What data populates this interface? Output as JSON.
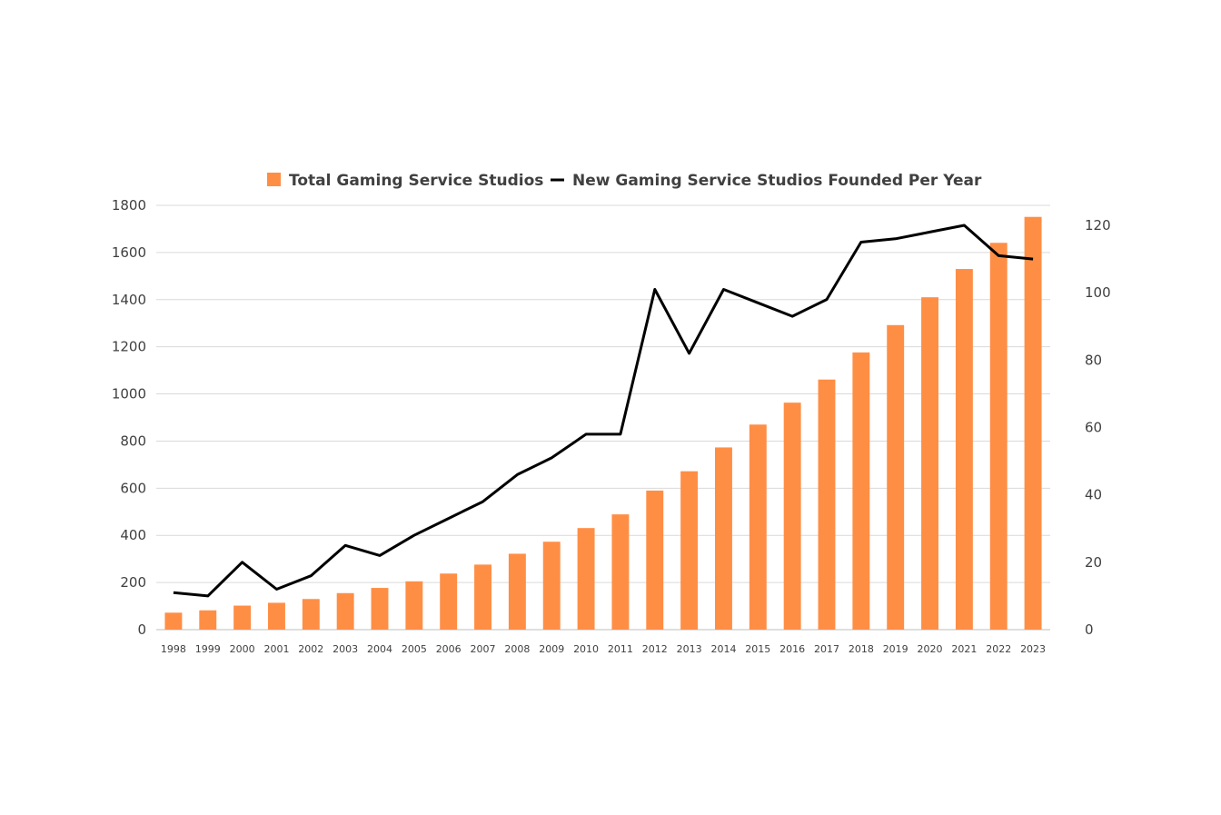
{
  "chart_data": {
    "type": "bar",
    "title": "",
    "xlabel": "",
    "ylabel": "",
    "y2label": "",
    "categories": [
      "1998",
      "1999",
      "2000",
      "2001",
      "2002",
      "2003",
      "2004",
      "2005",
      "2006",
      "2007",
      "2008",
      "2009",
      "2010",
      "2011",
      "2012",
      "2013",
      "2014",
      "2015",
      "2016",
      "2017",
      "2018",
      "2019",
      "2020",
      "2021",
      "2022",
      "2023"
    ],
    "series": [
      {
        "name": "Total Gaming Service Studios",
        "type": "bar",
        "axis": "left",
        "color": "#FF8E45",
        "values": [
          72,
          82,
          102,
          114,
          130,
          155,
          177,
          205,
          238,
          276,
          322,
          373,
          431,
          489,
          590,
          672,
          773,
          870,
          963,
          1061,
          1176,
          1292,
          1410,
          1530,
          1641,
          1751
        ]
      },
      {
        "name": "New Gaming Service Studios Founded Per Year",
        "type": "line",
        "axis": "right",
        "color": "#000000",
        "values": [
          11,
          10,
          20,
          12,
          16,
          25,
          22,
          28,
          33,
          38,
          46,
          51,
          58,
          58,
          101,
          82,
          101,
          97,
          93,
          98,
          115,
          116,
          118,
          120,
          111,
          110
        ]
      }
    ],
    "ylim": [
      0,
      1800
    ],
    "y_ticks": [
      "0",
      "200",
      "400",
      "600",
      "800",
      "1000",
      "1200",
      "1400",
      "1600",
      "1800"
    ],
    "y2lim": [
      0,
      120
    ],
    "y2_ticks": [
      "0",
      "20",
      "40",
      "60",
      "80",
      "100",
      "120"
    ],
    "grid": true,
    "legend_position": "top"
  }
}
